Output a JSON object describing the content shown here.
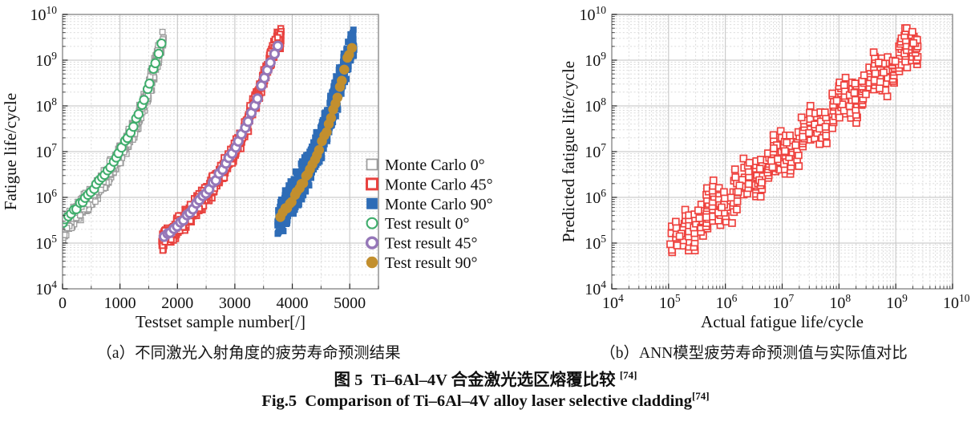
{
  "figure": {
    "caption_a": "（a）不同激光入射角度的疲劳寿命预测结果",
    "caption_b": "（b）ANN模型疲劳寿命预测值与实际值对比",
    "title_cn": "图 5  Ti–6Al–4V 合金激光选区熔覆比较 ",
    "title_cn_ref": "[74]",
    "title_en": "Fig.5  Comparison of Ti–6Al–4V alloy laser selective cladding",
    "title_en_ref": "[74]"
  },
  "colors": {
    "monte_carlo_0": "#9c9c9c",
    "monte_carlo_45": "#e8423f",
    "monte_carlo_90": "#2e6cb6",
    "test_0": "#3fad6c",
    "test_45": "#9577b8",
    "test_90": "#c28f2e",
    "ann_scatter": "#ee423e",
    "grid_major": "#c2c2c2",
    "grid_minor": "#d6d6d6",
    "frame": "#8a8a8a"
  },
  "chart_data": [
    {
      "type": "scatter",
      "panel": "(a)",
      "xlabel": "Testset sample number[/]",
      "ylabel": "Fatigue life/cycle",
      "x_scale": "linear",
      "xlim": [
        0,
        5500
      ],
      "x_ticks": [
        0,
        1000,
        2000,
        3000,
        4000,
        5000
      ],
      "x_minor_step": 500,
      "y_scale": "log",
      "ylim_log": [
        4,
        10
      ],
      "y_tick_exponents": [
        4,
        5,
        6,
        7,
        8,
        9,
        10
      ],
      "grid": "major-solid, minor-dotted",
      "legend_position": "right-middle",
      "series": [
        {
          "name": "Monte Carlo 0°",
          "marker": "open-square",
          "color": "#9c9c9c",
          "sw": 1.3,
          "size": 6.5,
          "seed": 11,
          "points": 600,
          "band_halfwidth_logy": 0.27,
          "center_logy_anchors": [
            [
              0,
              5.3
            ],
            [
              250,
              5.66
            ],
            [
              500,
              6.02
            ],
            [
              750,
              6.42
            ],
            [
              1000,
              6.92
            ],
            [
              1250,
              7.52
            ],
            [
              1500,
              8.35
            ],
            [
              1700,
              9.28
            ],
            [
              1760,
              9.52
            ]
          ]
        },
        {
          "name": "Monte Carlo 45°",
          "marker": "open-square",
          "color": "#e8423f",
          "sw": 2.0,
          "size": 6.5,
          "seed": 22,
          "points": 620,
          "band_halfwidth_logy": 0.26,
          "center_logy_anchors": [
            [
              1720,
              5.02
            ],
            [
              2000,
              5.35
            ],
            [
              2300,
              5.76
            ],
            [
              2600,
              6.22
            ],
            [
              2900,
              6.8
            ],
            [
              3200,
              7.55
            ],
            [
              3500,
              8.6
            ],
            [
              3700,
              9.32
            ],
            [
              3810,
              9.52
            ]
          ]
        },
        {
          "name": "Monte Carlo 90°",
          "marker": "filled-square",
          "color": "#2e6cb6",
          "sw": 0.8,
          "size": 7,
          "seed": 33,
          "points": 800,
          "band_halfwidth_logy": 0.45,
          "center_logy_anchors": [
            [
              3740,
              5.45
            ],
            [
              3900,
              5.8
            ],
            [
              4100,
              6.2
            ],
            [
              4300,
              6.68
            ],
            [
              4500,
              7.25
            ],
            [
              4700,
              7.95
            ],
            [
              4900,
              8.8
            ],
            [
              5080,
              9.45
            ]
          ]
        },
        {
          "name": "Test result 0°",
          "marker": "open-circle",
          "color": "#3fad6c",
          "sw": 2.0,
          "size": 5.2,
          "seed": 44,
          "points": 36,
          "center_logy_anchors": [
            [
              0,
              5.45
            ],
            [
              300,
              5.85
            ],
            [
              600,
              6.28
            ],
            [
              900,
              6.8
            ],
            [
              1200,
              7.45
            ],
            [
              1450,
              8.25
            ],
            [
              1600,
              8.85
            ],
            [
              1720,
              9.35
            ]
          ]
        },
        {
          "name": "Test result 45°",
          "marker": "open-circle",
          "color": "#9577b8",
          "sw": 3.0,
          "size": 5.2,
          "seed": 55,
          "points": 36,
          "center_logy_anchors": [
            [
              1770,
              5.12
            ],
            [
              2100,
              5.52
            ],
            [
              2400,
              5.95
            ],
            [
              2700,
              6.45
            ],
            [
              3000,
              7.05
            ],
            [
              3300,
              7.85
            ],
            [
              3550,
              8.75
            ],
            [
              3740,
              9.3
            ]
          ]
        },
        {
          "name": "Test result 90°",
          "marker": "filled-circle",
          "color": "#c28f2e",
          "sw": 0.8,
          "size": 5.8,
          "seed": 66,
          "points": 32,
          "center_logy_anchors": [
            [
              3800,
              5.6
            ],
            [
              4000,
              5.95
            ],
            [
              4200,
              6.35
            ],
            [
              4400,
              6.85
            ],
            [
              4600,
              7.45
            ],
            [
              4800,
              8.25
            ],
            [
              4950,
              9.0
            ],
            [
              5030,
              9.26
            ]
          ]
        }
      ]
    },
    {
      "type": "scatter",
      "panel": "(b)",
      "xlabel": "Actual fatigue life/cycle",
      "ylabel": "Predicted fatigue life/cycle",
      "x_scale": "log",
      "xlim_log": [
        4,
        10
      ],
      "x_tick_exponents": [
        4,
        5,
        6,
        7,
        8,
        9,
        10
      ],
      "y_scale": "log",
      "ylim_log": [
        4,
        10
      ],
      "y_tick_exponents": [
        4,
        5,
        6,
        7,
        8,
        9,
        10
      ],
      "grid": "major-solid, minor-dotted",
      "series": [
        {
          "name": "ANN prediction vs actual",
          "marker": "open-square",
          "color": "#ee423e",
          "sw": 1.7,
          "size": 8,
          "seed": 77,
          "points": 380,
          "columns": 42,
          "logx_range": [
            5.05,
            9.38
          ],
          "trend": "logy ≈ logx (diagonal band, prediction ≈ actual)",
          "band_halfwidth_logy": 0.38,
          "column_spread_logy": [
            0.5,
            0.95
          ],
          "logy_clamp": [
            4.8,
            9.7
          ]
        }
      ]
    }
  ]
}
